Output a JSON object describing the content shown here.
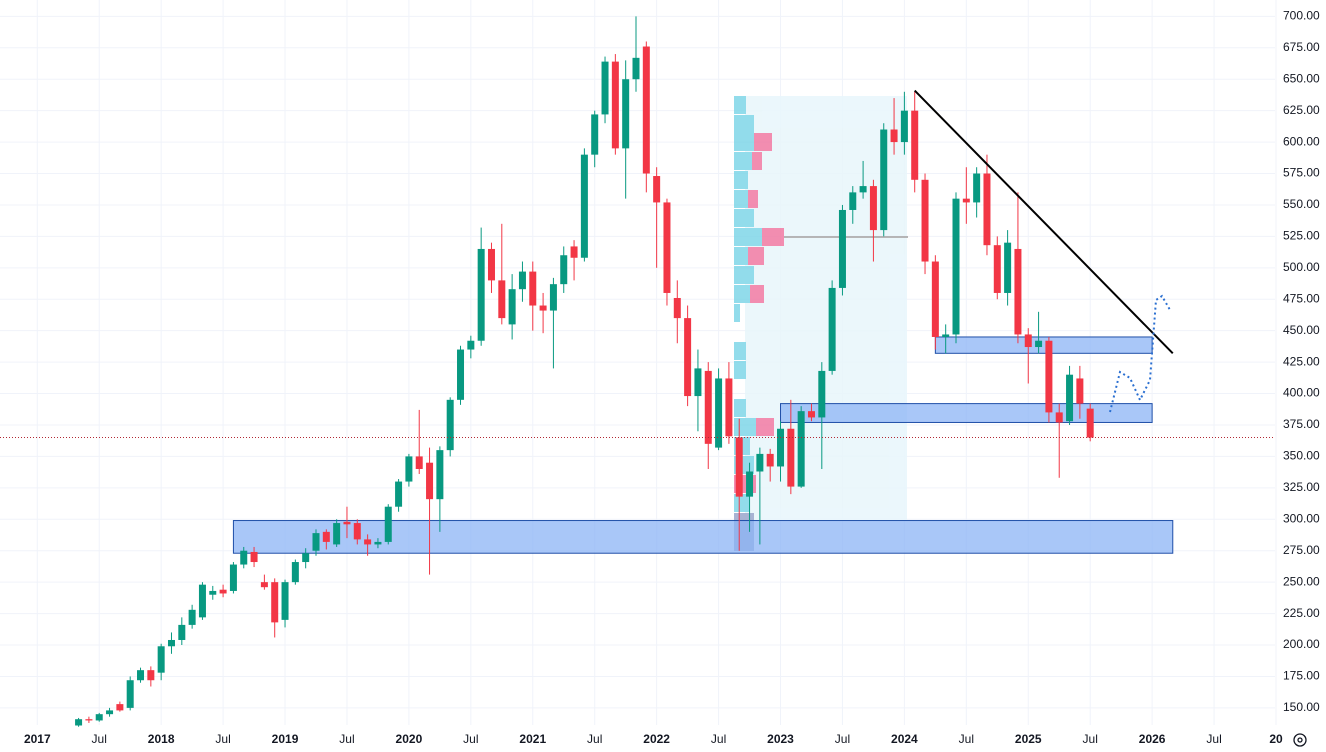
{
  "chart_data": {
    "type": "candlestick",
    "x": [
      "2017-05",
      "2017-06",
      "2017-07",
      "2017-08",
      "2017-09",
      "2017-10",
      "2017-11",
      "2017-12",
      "2018-01",
      "2018-02",
      "2018-03",
      "2018-04",
      "2018-05",
      "2018-06",
      "2018-07",
      "2018-08",
      "2018-09",
      "2018-10",
      "2018-11",
      "2018-12",
      "2019-01",
      "2019-02",
      "2019-03",
      "2019-04",
      "2019-05",
      "2019-06",
      "2019-07",
      "2019-08",
      "2019-09",
      "2019-10",
      "2019-11",
      "2019-12",
      "2020-01",
      "2020-02",
      "2020-03",
      "2020-04",
      "2020-05",
      "2020-06",
      "2020-07",
      "2020-08",
      "2020-09",
      "2020-10",
      "2020-11",
      "2020-12",
      "2021-01",
      "2021-02",
      "2021-03",
      "2021-04",
      "2021-05",
      "2021-06",
      "2021-07",
      "2021-08",
      "2021-09",
      "2021-10",
      "2021-11",
      "2021-12",
      "2022-01",
      "2022-02",
      "2022-03",
      "2022-04",
      "2022-05",
      "2022-06",
      "2022-07",
      "2022-08",
      "2022-09",
      "2022-10",
      "2022-11",
      "2022-12",
      "2023-01",
      "2023-02",
      "2023-03",
      "2023-04",
      "2023-05",
      "2023-06",
      "2023-07",
      "2023-08",
      "2023-09",
      "2023-10",
      "2023-11",
      "2023-12",
      "2024-01",
      "2024-02",
      "2024-03",
      "2024-04",
      "2024-05",
      "2024-06",
      "2024-07",
      "2024-08",
      "2024-09",
      "2024-10",
      "2024-11",
      "2024-12",
      "2025-01",
      "2025-02",
      "2025-03",
      "2025-04",
      "2025-05",
      "2025-06",
      "2025-07"
    ],
    "open": [
      136,
      141,
      140,
      145,
      153,
      150,
      172,
      180,
      178,
      199,
      204,
      216,
      222,
      240,
      244,
      243,
      264,
      274,
      250,
      250,
      220,
      250,
      266,
      275,
      290,
      280,
      298,
      297,
      284,
      280,
      282,
      310,
      330,
      350,
      345,
      316,
      355,
      395,
      435,
      442,
      515,
      490,
      455,
      483,
      497,
      470,
      466,
      487,
      517,
      508,
      590,
      622,
      664,
      595,
      650,
      676,
      573,
      552,
      476,
      460,
      398,
      418,
      357,
      412,
      365,
      318,
      338,
      352,
      342,
      372,
      326,
      386,
      381,
      418,
      484,
      546,
      560,
      565,
      530,
      610,
      600,
      625,
      570,
      505,
      445,
      447,
      555,
      552,
      575,
      518,
      480,
      515,
      447,
      437,
      442,
      385,
      378,
      412,
      388
    ],
    "high": [
      142,
      143,
      146,
      150,
      155,
      175,
      182,
      183,
      201,
      210,
      222,
      232,
      250,
      247,
      248,
      266,
      278,
      278,
      256,
      253,
      252,
      268,
      277,
      292,
      292,
      300,
      310,
      300,
      288,
      285,
      312,
      332,
      352,
      387,
      357,
      358,
      397,
      438,
      446,
      532,
      520,
      535,
      495,
      505,
      505,
      480,
      492,
      517,
      522,
      595,
      625,
      668,
      670,
      665,
      700,
      680,
      580,
      555,
      490,
      470,
      435,
      425,
      420,
      425,
      380,
      345,
      357,
      356,
      378,
      395,
      390,
      392,
      425,
      490,
      550,
      565,
      585,
      570,
      615,
      635,
      640,
      640,
      575,
      510,
      455,
      560,
      580,
      580,
      590,
      525,
      530,
      560,
      452,
      465,
      445,
      392,
      422,
      422,
      392
    ],
    "low": [
      135,
      138,
      139,
      143,
      147,
      148,
      170,
      167,
      172,
      193,
      200,
      213,
      220,
      236,
      238,
      241,
      261,
      262,
      244,
      206,
      214,
      248,
      261,
      271,
      276,
      278,
      285,
      280,
      271,
      277,
      280,
      306,
      326,
      336,
      256,
      290,
      350,
      391,
      428,
      438,
      480,
      455,
      443,
      473,
      450,
      448,
      420,
      480,
      490,
      505,
      580,
      615,
      590,
      555,
      640,
      560,
      500,
      470,
      440,
      390,
      370,
      340,
      355,
      360,
      275,
      290,
      280,
      330,
      330,
      320,
      325,
      378,
      340,
      415,
      478,
      535,
      555,
      505,
      525,
      590,
      590,
      560,
      495,
      435,
      432,
      440,
      535,
      540,
      510,
      475,
      470,
      440,
      408,
      432,
      377,
      333,
      375,
      380,
      362
    ],
    "close": [
      141,
      140,
      145,
      148,
      148,
      172,
      180,
      172,
      199,
      204,
      216,
      228,
      248,
      243,
      241,
      264,
      275,
      266,
      246,
      218,
      250,
      266,
      273,
      289,
      282,
      297,
      296,
      284,
      280,
      282,
      310,
      330,
      350,
      340,
      316,
      355,
      395,
      435,
      442,
      515,
      490,
      460,
      483,
      497,
      470,
      466,
      487,
      510,
      508,
      590,
      622,
      664,
      595,
      650,
      667,
      575,
      552,
      480,
      460,
      398,
      420,
      360,
      412,
      366,
      318,
      338,
      352,
      342,
      372,
      326,
      386,
      381,
      418,
      484,
      546,
      560,
      565,
      530,
      610,
      600,
      625,
      570,
      505,
      445,
      447,
      555,
      552,
      575,
      518,
      480,
      520,
      447,
      437,
      442,
      385,
      377,
      415,
      392,
      365
    ],
    "up_color": "#089981",
    "down_color": "#f23645",
    "xlim": [
      "2016-09",
      "2027-01"
    ],
    "xticks": [
      {
        "value": "2017-01",
        "label": "2017"
      },
      {
        "value": "2017-07",
        "label": "Jul"
      },
      {
        "value": "2018-01",
        "label": "2018"
      },
      {
        "value": "2018-07",
        "label": "Jul"
      },
      {
        "value": "2019-01",
        "label": "2019"
      },
      {
        "value": "2019-07",
        "label": "Jul"
      },
      {
        "value": "2020-01",
        "label": "2020"
      },
      {
        "value": "2020-07",
        "label": "Jul"
      },
      {
        "value": "2021-01",
        "label": "2021"
      },
      {
        "value": "2021-07",
        "label": "Jul"
      },
      {
        "value": "2022-01",
        "label": "2022"
      },
      {
        "value": "2022-07",
        "label": "Jul"
      },
      {
        "value": "2023-01",
        "label": "2023"
      },
      {
        "value": "2023-07",
        "label": "Jul"
      },
      {
        "value": "2024-01",
        "label": "2024"
      },
      {
        "value": "2024-07",
        "label": "Jul"
      },
      {
        "value": "2025-01",
        "label": "2025"
      },
      {
        "value": "2025-07",
        "label": "Jul"
      },
      {
        "value": "2026-01",
        "label": "2026"
      },
      {
        "value": "2026-07",
        "label": "Jul"
      },
      {
        "value": "2027-01",
        "label": "20"
      }
    ],
    "ylim": [
      134,
      713
    ],
    "yticks": [
      {
        "value": 150,
        "label": "150.00"
      },
      {
        "value": 175,
        "label": "175.00"
      },
      {
        "value": 200,
        "label": "200.00"
      },
      {
        "value": 225,
        "label": "225.00"
      },
      {
        "value": 250,
        "label": "250.00"
      },
      {
        "value": 275,
        "label": "275.00"
      },
      {
        "value": 300,
        "label": "300.00"
      },
      {
        "value": 325,
        "label": "325.00"
      },
      {
        "value": 350,
        "label": "350.00"
      },
      {
        "value": 375,
        "label": "375.00"
      },
      {
        "value": 400,
        "label": "400.00"
      },
      {
        "value": 425,
        "label": "425.00"
      },
      {
        "value": 450,
        "label": "450.00"
      },
      {
        "value": 475,
        "label": "475.00"
      },
      {
        "value": 500,
        "label": "500.00"
      },
      {
        "value": 525,
        "label": "525.00"
      },
      {
        "value": 550,
        "label": "550.00"
      },
      {
        "value": 575,
        "label": "575.00"
      },
      {
        "value": 600,
        "label": "600.00"
      },
      {
        "value": 625,
        "label": "625.00"
      },
      {
        "value": 650,
        "label": "650.00"
      },
      {
        "value": 675,
        "label": "675.00"
      },
      {
        "value": 700,
        "label": "700.00"
      }
    ],
    "grid": true,
    "zones": [
      {
        "from": "2018-08",
        "to": "2026-03",
        "low": 273,
        "high": 299
      },
      {
        "from": "2023-01",
        "to": "2026-01",
        "low": 377,
        "high": 392
      },
      {
        "from": "2024-04",
        "to": "2026-01",
        "low": 432,
        "high": 445
      }
    ],
    "zone_color": "#8cb4f5",
    "trendline": {
      "x": [
        "2024-02",
        "2026-03"
      ],
      "values": [
        641,
        432
      ],
      "color": "#000000"
    },
    "price_line_color": "#b22833"
  }
}
